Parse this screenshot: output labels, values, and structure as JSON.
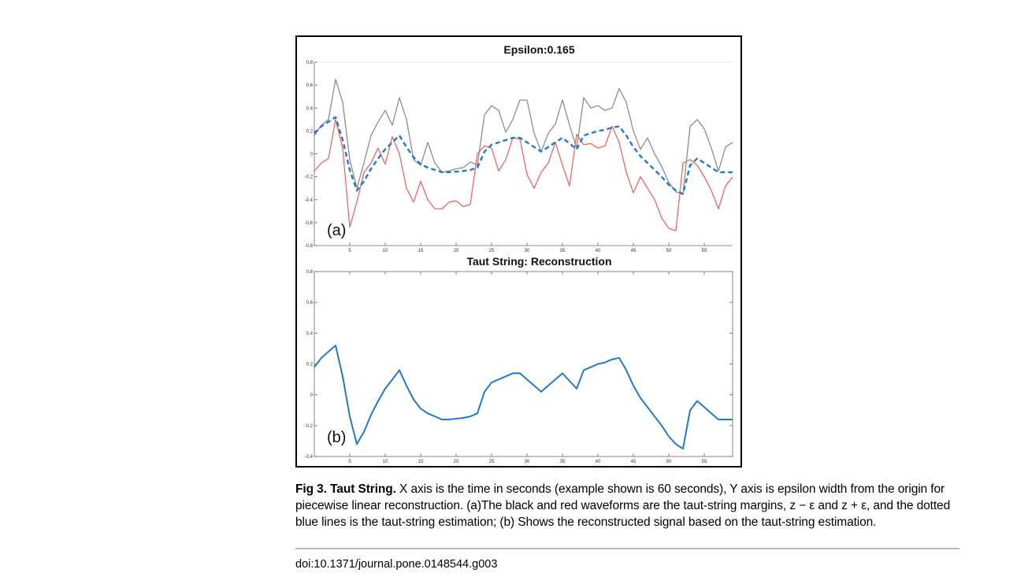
{
  "chart_data": [
    {
      "type": "line",
      "title": "Epsilon:0.165",
      "panel_label": "(a)",
      "xlabel": "",
      "ylabel": "",
      "xlim": [
        0,
        59
      ],
      "ylim": [
        -0.8,
        0.8
      ],
      "xticks": [
        5,
        10,
        15,
        20,
        25,
        30,
        35,
        40,
        45,
        50,
        55
      ],
      "yticks": [
        -0.8,
        -0.6,
        -0.4,
        -0.2,
        0,
        0.2,
        0.4,
        0.6,
        0.8
      ],
      "ytick_labels": [
        "-0.8",
        "-0.6",
        "-0.4",
        "-0.2",
        "0",
        "0.2",
        "0.4",
        "0.6",
        "0.8"
      ],
      "grid": false,
      "series": [
        {
          "color": "#8c8c8c",
          "style": "solid",
          "x": [
            0,
            1,
            2,
            3,
            4,
            5,
            6,
            7,
            8,
            9,
            10,
            11,
            12,
            13,
            14,
            15,
            16,
            17,
            18,
            19,
            20,
            21,
            22,
            23,
            24,
            25,
            26,
            27,
            28,
            29,
            30,
            31,
            32,
            33,
            34,
            35,
            36,
            37,
            38,
            39,
            40,
            41,
            42,
            43,
            44,
            45,
            46,
            47,
            48,
            49,
            50,
            51,
            52,
            53,
            54,
            55,
            56,
            57,
            58,
            59
          ],
          "y": [
            0.16,
            0.25,
            0.3,
            0.65,
            0.45,
            -0.05,
            -0.3,
            -0.08,
            0.16,
            0.28,
            0.38,
            0.25,
            0.49,
            0.3,
            -0.05,
            -0.1,
            0.1,
            -0.08,
            -0.16,
            -0.15,
            -0.13,
            -0.12,
            -0.07,
            -0.1,
            0.34,
            0.42,
            0.38,
            0.19,
            0.3,
            0.47,
            0.47,
            0.18,
            0.02,
            0.18,
            0.26,
            0.47,
            0.25,
            0.05,
            0.49,
            0.4,
            0.42,
            0.38,
            0.4,
            0.57,
            0.45,
            0.2,
            0.04,
            0.14,
            0.0,
            -0.11,
            -0.25,
            -0.33,
            -0.35,
            0.24,
            0.3,
            0.22,
            0.05,
            -0.15,
            0.06,
            0.1
          ]
        },
        {
          "color": "#f06464",
          "style": "solid",
          "x": [
            0,
            1,
            2,
            3,
            4,
            5,
            6,
            7,
            8,
            9,
            10,
            11,
            12,
            13,
            14,
            15,
            16,
            17,
            18,
            19,
            20,
            21,
            22,
            23,
            24,
            25,
            26,
            27,
            28,
            29,
            30,
            31,
            32,
            33,
            34,
            35,
            36,
            37,
            38,
            39,
            40,
            41,
            42,
            43,
            44,
            45,
            46,
            47,
            48,
            49,
            50,
            51,
            52,
            53,
            54,
            55,
            56,
            57,
            58,
            59
          ],
          "y": [
            -0.15,
            -0.08,
            -0.04,
            0.3,
            0.05,
            -0.64,
            -0.42,
            -0.16,
            -0.08,
            0.05,
            -0.09,
            0.15,
            0.0,
            -0.3,
            -0.42,
            -0.24,
            -0.4,
            -0.48,
            -0.48,
            -0.42,
            -0.41,
            -0.46,
            -0.44,
            0.0,
            0.07,
            0.05,
            -0.15,
            -0.05,
            0.14,
            0.13,
            -0.18,
            -0.3,
            -0.16,
            -0.08,
            0.1,
            -0.1,
            -0.28,
            0.17,
            0.08,
            0.09,
            0.05,
            0.07,
            0.24,
            0.1,
            -0.16,
            -0.34,
            -0.2,
            -0.3,
            -0.4,
            -0.56,
            -0.65,
            -0.67,
            -0.08,
            -0.05,
            -0.1,
            -0.2,
            -0.32,
            -0.48,
            -0.28,
            -0.2
          ]
        },
        {
          "color": "#2379c4",
          "style": "dashed",
          "x": [
            0,
            1,
            2,
            3,
            4,
            5,
            6,
            7,
            8,
            9,
            10,
            11,
            12,
            13,
            14,
            15,
            16,
            17,
            18,
            19,
            20,
            21,
            22,
            23,
            24,
            25,
            26,
            27,
            28,
            29,
            30,
            31,
            32,
            33,
            34,
            35,
            36,
            37,
            38,
            39,
            40,
            41,
            42,
            43,
            44,
            45,
            46,
            47,
            48,
            49,
            50,
            51,
            52,
            53,
            54,
            55,
            56,
            57,
            58,
            59
          ],
          "y": [
            0.18,
            0.24,
            0.28,
            0.32,
            0.12,
            -0.14,
            -0.32,
            -0.24,
            -0.13,
            -0.04,
            0.04,
            0.1,
            0.16,
            0.06,
            -0.03,
            -0.09,
            -0.12,
            -0.14,
            -0.16,
            -0.16,
            -0.155,
            -0.15,
            -0.14,
            -0.12,
            0.02,
            0.08,
            0.1,
            0.12,
            0.14,
            0.14,
            0.1,
            0.06,
            0.02,
            0.06,
            0.1,
            0.14,
            0.09,
            0.04,
            0.16,
            0.18,
            0.2,
            0.21,
            0.23,
            0.24,
            0.16,
            0.06,
            -0.02,
            -0.08,
            -0.14,
            -0.2,
            -0.27,
            -0.32,
            -0.35,
            -0.1,
            -0.04,
            -0.08,
            -0.12,
            -0.16,
            -0.16,
            -0.16
          ]
        }
      ]
    },
    {
      "type": "line",
      "title": "Taut String: Reconstruction",
      "panel_label": "(b)",
      "xlabel": "",
      "ylabel": "",
      "xlim": [
        0,
        59
      ],
      "ylim": [
        -0.4,
        0.8
      ],
      "xticks": [
        5,
        10,
        15,
        20,
        25,
        30,
        35,
        40,
        45,
        50,
        55
      ],
      "yticks": [
        -0.4,
        -0.2,
        0,
        0.2,
        0.4,
        0.6,
        0.8
      ],
      "ytick_labels": [
        "-0.4",
        "-0.2",
        "0",
        "0.2",
        "0.4",
        "0.6",
        "0.8"
      ],
      "grid": false,
      "series": [
        {
          "color": "#2379c4",
          "style": "solid",
          "x": [
            0,
            1,
            2,
            3,
            4,
            5,
            6,
            7,
            8,
            9,
            10,
            11,
            12,
            13,
            14,
            15,
            16,
            17,
            18,
            19,
            20,
            21,
            22,
            23,
            24,
            25,
            26,
            27,
            28,
            29,
            30,
            31,
            32,
            33,
            34,
            35,
            36,
            37,
            38,
            39,
            40,
            41,
            42,
            43,
            44,
            45,
            46,
            47,
            48,
            49,
            50,
            51,
            52,
            53,
            54,
            55,
            56,
            57,
            58,
            59
          ],
          "y": [
            0.18,
            0.24,
            0.28,
            0.32,
            0.12,
            -0.14,
            -0.32,
            -0.24,
            -0.13,
            -0.04,
            0.04,
            0.1,
            0.16,
            0.06,
            -0.03,
            -0.09,
            -0.12,
            -0.14,
            -0.16,
            -0.16,
            -0.155,
            -0.15,
            -0.14,
            -0.12,
            0.02,
            0.08,
            0.1,
            0.12,
            0.14,
            0.14,
            0.1,
            0.06,
            0.02,
            0.06,
            0.1,
            0.14,
            0.09,
            0.04,
            0.16,
            0.18,
            0.2,
            0.21,
            0.23,
            0.24,
            0.16,
            0.06,
            -0.02,
            -0.08,
            -0.14,
            -0.2,
            -0.27,
            -0.32,
            -0.35,
            -0.1,
            -0.04,
            -0.08,
            -0.12,
            -0.16,
            -0.16,
            -0.16
          ]
        }
      ]
    }
  ],
  "caption": {
    "label": "Fig 3. Taut String.",
    "text": " X axis is the time in seconds (example shown is 60 seconds), Y axis is epsilon width from the origin for piecewise linear reconstruction. (a)The black and red waveforms are the taut-string margins, z − ε and z + ε, and the dotted blue lines is the taut-string estimation; (b) Shows the reconstructed signal based on the taut-string estimation."
  },
  "doi": "doi:10.1371/journal.pone.0148544.g003"
}
